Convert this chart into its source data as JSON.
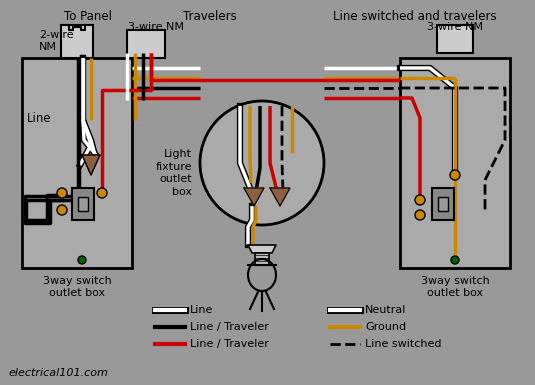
{
  "bg_color": "#999999",
  "colors": {
    "white": "#ffffff",
    "black": "#000000",
    "red": "#cc0000",
    "yellow": "#cc8800",
    "gray": "#999999",
    "box_fill": "#aaaaaa",
    "brown": "#8B6040",
    "green": "#006600",
    "switch_fill": "#888888",
    "cable_fill": "#cccccc"
  },
  "header": {
    "to_panel": "To Panel",
    "travelers": "Travelers",
    "line_switched": "Line switched and travelers"
  },
  "labels": {
    "left_cable": "2-wire\nNM",
    "mid_cable": "3-wire NM",
    "right_cable": "3-wire NM",
    "left_box": "3way switch\noutlet box",
    "right_box": "3way switch\noutlet box",
    "line": "Line",
    "fixture": "Light\nfixture\noutlet\nbox"
  },
  "legend": [
    {
      "label": "Line",
      "color": "#ffffff",
      "style": "solid",
      "lw": 3
    },
    {
      "label": "Line / Traveler",
      "color": "#000000",
      "style": "solid",
      "lw": 3
    },
    {
      "label": "Line / Traveler",
      "color": "#cc0000",
      "style": "solid",
      "lw": 3
    },
    {
      "label": "Neutral",
      "color": "#ffffff",
      "style": "solid",
      "lw": 3
    },
    {
      "label": "Ground",
      "color": "#cc8800",
      "style": "solid",
      "lw": 3
    },
    {
      "label": "Line switched",
      "color": "#000000",
      "style": "dashed",
      "lw": 2
    }
  ],
  "footer": "electrical101.com"
}
